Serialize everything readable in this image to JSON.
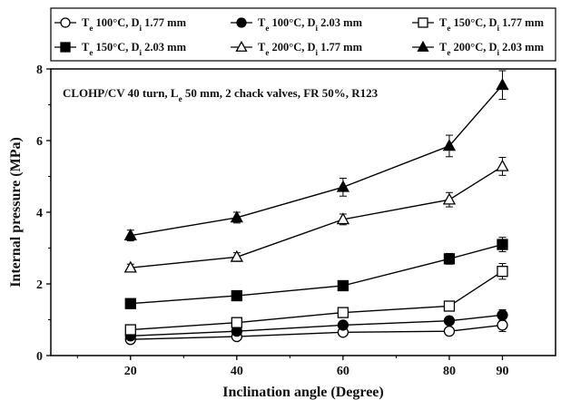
{
  "chart_data": {
    "type": "line",
    "xlabel": "Inclination angle (Degree)",
    "ylabel": "Internal pressure (MPa)",
    "annotation": {
      "parts": [
        {
          "text": "CLOHP/CV 40 turn, L"
        },
        {
          "text": "e",
          "sub": true
        },
        {
          "text": " 50 mm, 2 chack valves, FR 50%, R123"
        }
      ]
    },
    "x": [
      20,
      40,
      60,
      80,
      90
    ],
    "xlim": [
      5,
      100
    ],
    "ylim": [
      0,
      8
    ],
    "x_ticks": [
      20,
      40,
      60,
      80,
      90
    ],
    "y_ticks": [
      0,
      2,
      4,
      6,
      8
    ],
    "grid": false,
    "legend_position": "top, above plot, boxed, 3 columns",
    "series": [
      {
        "name": "Te 100°C, Di 1.77 mm",
        "label_parts": [
          {
            "text": "T"
          },
          {
            "text": "e",
            "sub": true
          },
          {
            "text": " 100°C, D"
          },
          {
            "text": "i",
            "sub": true
          },
          {
            "text": " 1.77 mm"
          }
        ],
        "marker": "circle",
        "filled": false,
        "values": [
          0.45,
          0.53,
          0.65,
          0.68,
          0.85
        ],
        "errors": [
          0.05,
          0.06,
          0.06,
          0.07,
          0.18
        ]
      },
      {
        "name": "Te 100°C, Di 2.03 mm",
        "label_parts": [
          {
            "text": "T"
          },
          {
            "text": "e",
            "sub": true
          },
          {
            "text": " 100°C, D"
          },
          {
            "text": "i",
            "sub": true
          },
          {
            "text": " 2.03 mm"
          }
        ],
        "marker": "circle",
        "filled": true,
        "values": [
          0.55,
          0.68,
          0.85,
          0.97,
          1.13
        ],
        "errors": [
          0.05,
          0.06,
          0.07,
          0.08,
          0.15
        ]
      },
      {
        "name": "Te 150°C, Di 1.77 mm",
        "label_parts": [
          {
            "text": "T"
          },
          {
            "text": "e",
            "sub": true
          },
          {
            "text": " 150°C, D"
          },
          {
            "text": "i",
            "sub": true
          },
          {
            "text": " 1.77 mm"
          }
        ],
        "marker": "square",
        "filled": false,
        "values": [
          0.72,
          0.92,
          1.2,
          1.38,
          2.35
        ],
        "errors": [
          0.06,
          0.07,
          0.08,
          0.08,
          0.22
        ]
      },
      {
        "name": "Te 150°C, Di 2.03 mm",
        "label_parts": [
          {
            "text": "T"
          },
          {
            "text": "e",
            "sub": true
          },
          {
            "text": " 150°C, D"
          },
          {
            "text": "i",
            "sub": true
          },
          {
            "text": " 2.03 mm"
          }
        ],
        "marker": "square",
        "filled": true,
        "values": [
          1.45,
          1.67,
          1.95,
          2.7,
          3.1
        ],
        "errors": [
          0.06,
          0.07,
          0.07,
          0.15,
          0.2
        ]
      },
      {
        "name": "Te 200°C, Di 1.77 mm",
        "label_parts": [
          {
            "text": "T"
          },
          {
            "text": "e",
            "sub": true
          },
          {
            "text": " 200°C, D"
          },
          {
            "text": "i",
            "sub": true
          },
          {
            "text": " 1.77 mm"
          }
        ],
        "marker": "triangle",
        "filled": false,
        "values": [
          2.45,
          2.75,
          3.8,
          4.35,
          5.28
        ],
        "errors": [
          0.1,
          0.12,
          0.15,
          0.2,
          0.25
        ]
      },
      {
        "name": "Te 200°C, Di 2.03 mm",
        "label_parts": [
          {
            "text": "T"
          },
          {
            "text": "e",
            "sub": true
          },
          {
            "text": " 200°C, D"
          },
          {
            "text": "i",
            "sub": true
          },
          {
            "text": " 2.03 mm"
          }
        ],
        "marker": "triangle",
        "filled": true,
        "values": [
          3.35,
          3.85,
          4.7,
          5.85,
          7.55
        ],
        "errors": [
          0.15,
          0.15,
          0.25,
          0.3,
          0.4
        ]
      }
    ]
  }
}
